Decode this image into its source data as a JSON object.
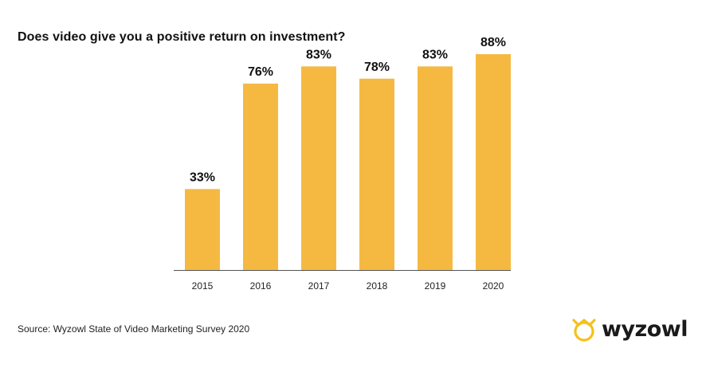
{
  "title": "Does video give you a positive return on investment?",
  "source": "Source: Wyzowl State of Video Marketing Survey 2020",
  "brand": {
    "name": "wyzowl",
    "icon": "wyzowl-owl-logo",
    "color": "#f5c11a"
  },
  "colors": {
    "bar": "#f5b942",
    "axis": "#555555",
    "text": "#111111"
  },
  "chart_data": {
    "type": "bar",
    "categories": [
      "2015",
      "2016",
      "2017",
      "2018",
      "2019",
      "2020"
    ],
    "values": [
      33,
      76,
      83,
      78,
      83,
      88
    ],
    "data_labels": [
      "33%",
      "76%",
      "83%",
      "78%",
      "83%",
      "88%"
    ],
    "title": "Does video give you a positive return on investment?",
    "xlabel": "",
    "ylabel": "",
    "ylim": [
      0,
      100
    ],
    "grid": false,
    "legend": "none"
  }
}
